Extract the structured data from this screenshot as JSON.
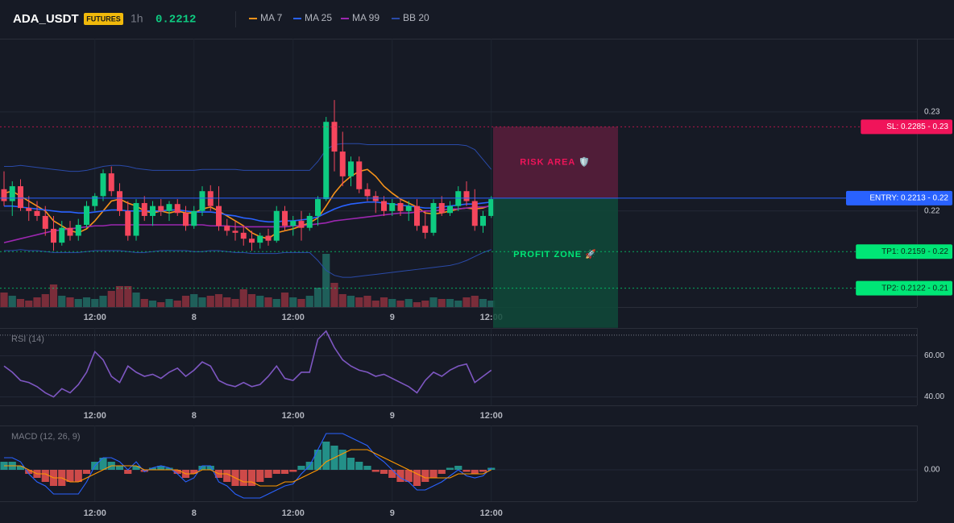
{
  "chart_data": [
    {
      "type": "candlestick",
      "title": "ADA_USDT",
      "badge": "FUTURES",
      "interval": "1h",
      "last_price": 0.2212,
      "last_price_color": "#0ecb81",
      "categories": [
        null,
        null,
        null,
        null,
        null,
        null,
        null,
        null,
        null,
        null,
        null,
        "12:00",
        null,
        null,
        null,
        null,
        null,
        null,
        null,
        null,
        null,
        null,
        null,
        "8",
        null,
        null,
        null,
        null,
        null,
        null,
        null,
        null,
        null,
        null,
        null,
        "12:00",
        null,
        null,
        null,
        null,
        null,
        null,
        null,
        null,
        null,
        null,
        null,
        "9",
        null,
        null,
        null,
        null,
        null,
        null,
        null,
        null,
        null,
        null,
        null,
        "12:00"
      ],
      "open": [
        0.2222,
        0.221,
        0.2225,
        0.2203,
        0.22,
        0.2195,
        0.2182,
        0.2168,
        0.2183,
        0.2175,
        0.2186,
        0.2205,
        0.2215,
        0.2238,
        0.222,
        0.22,
        0.2175,
        0.2208,
        0.2195,
        0.2205,
        0.22,
        0.2207,
        0.2198,
        0.2185,
        0.22,
        0.222,
        0.2205,
        0.2185,
        0.218,
        0.2178,
        0.2172,
        0.2168,
        0.2175,
        0.217,
        0.22,
        0.2185,
        0.219,
        0.2183,
        0.2195,
        0.2212,
        0.229,
        0.226,
        0.2235,
        0.225,
        0.2222,
        0.2215,
        0.221,
        0.22,
        0.2208,
        0.22,
        0.2205,
        0.2185,
        0.2178,
        0.2208,
        0.2198,
        0.2205,
        0.222,
        0.221,
        0.2185,
        0.2195
      ],
      "high": [
        0.224,
        0.223,
        0.2232,
        0.2215,
        0.221,
        0.2205,
        0.2195,
        0.219,
        0.219,
        0.2192,
        0.221,
        0.2218,
        0.2242,
        0.2245,
        0.2228,
        0.221,
        0.2212,
        0.2215,
        0.221,
        0.2212,
        0.221,
        0.2212,
        0.2205,
        0.2205,
        0.2225,
        0.2226,
        0.2225,
        0.2192,
        0.219,
        0.2185,
        0.218,
        0.2178,
        0.2182,
        0.2205,
        0.2205,
        0.2195,
        0.22,
        0.2198,
        0.2215,
        0.2295,
        0.2312,
        0.228,
        0.2255,
        0.2255,
        0.2228,
        0.222,
        0.2215,
        0.2212,
        0.2212,
        0.221,
        0.2212,
        0.22,
        0.2212,
        0.2215,
        0.221,
        0.2225,
        0.223,
        0.2222,
        0.22,
        0.2215
      ],
      "low": [
        0.2205,
        0.2195,
        0.22,
        0.219,
        0.219,
        0.2175,
        0.216,
        0.2165,
        0.217,
        0.217,
        0.2183,
        0.22,
        0.221,
        0.2215,
        0.2195,
        0.217,
        0.217,
        0.219,
        0.2185,
        0.2195,
        0.219,
        0.2195,
        0.218,
        0.2182,
        0.2195,
        0.22,
        0.218,
        0.2175,
        0.217,
        0.2165,
        0.216,
        0.2162,
        0.2165,
        0.2168,
        0.218,
        0.2175,
        0.217,
        0.218,
        0.2185,
        0.221,
        0.224,
        0.2225,
        0.2225,
        0.2218,
        0.221,
        0.2198,
        0.2195,
        0.2195,
        0.2195,
        0.219,
        0.218,
        0.2172,
        0.2175,
        0.2195,
        0.2195,
        0.22,
        0.2205,
        0.218,
        0.2178,
        0.2193
      ],
      "close": [
        0.221,
        0.2225,
        0.2203,
        0.22,
        0.2195,
        0.2182,
        0.2168,
        0.2183,
        0.2175,
        0.2186,
        0.2205,
        0.2215,
        0.2238,
        0.222,
        0.22,
        0.2175,
        0.2208,
        0.2195,
        0.2205,
        0.22,
        0.2207,
        0.2198,
        0.2185,
        0.22,
        0.222,
        0.2205,
        0.2185,
        0.218,
        0.2178,
        0.2172,
        0.2168,
        0.2175,
        0.217,
        0.22,
        0.2185,
        0.219,
        0.2183,
        0.2195,
        0.2212,
        0.229,
        0.226,
        0.2235,
        0.225,
        0.2222,
        0.2215,
        0.221,
        0.22,
        0.2208,
        0.22,
        0.2205,
        0.2185,
        0.2178,
        0.2208,
        0.2198,
        0.2205,
        0.222,
        0.221,
        0.2185,
        0.2195,
        0.2212
      ],
      "up_color": "#0ecb81",
      "down_color": "#f6465d",
      "volume": [
        18,
        14,
        10,
        8,
        12,
        16,
        28,
        14,
        12,
        10,
        12,
        10,
        14,
        20,
        26,
        26,
        18,
        10,
        8,
        6,
        10,
        8,
        14,
        16,
        12,
        14,
        16,
        12,
        10,
        22,
        16,
        14,
        12,
        10,
        18,
        12,
        10,
        14,
        24,
        66,
        30,
        16,
        14,
        12,
        14,
        8,
        12,
        10,
        8,
        10,
        6,
        8,
        12,
        10,
        10,
        8,
        12,
        14,
        10,
        8
      ],
      "volume_colors": [
        "#1f5f5a",
        "#7a2d3a"
      ],
      "series": [
        {
          "name": "MA 7",
          "color": "#f7931a",
          "values": [
            0.2218,
            0.222,
            0.2215,
            0.221,
            0.2205,
            0.22,
            0.219,
            0.2185,
            0.218,
            0.2178,
            0.2182,
            0.219,
            0.22,
            0.221,
            0.2212,
            0.2208,
            0.2205,
            0.22,
            0.2198,
            0.22,
            0.2198,
            0.22,
            0.2198,
            0.2198,
            0.2202,
            0.2204,
            0.22,
            0.2195,
            0.219,
            0.2185,
            0.2178,
            0.2174,
            0.2172,
            0.2178,
            0.218,
            0.2182,
            0.2185,
            0.2188,
            0.2193,
            0.2205,
            0.2218,
            0.2228,
            0.2235,
            0.224,
            0.2242,
            0.2235,
            0.2225,
            0.2218,
            0.2212,
            0.2208,
            0.2204,
            0.2198,
            0.2197,
            0.2198,
            0.22,
            0.2202,
            0.2203,
            0.2202,
            0.2203,
            0.2206
          ]
        },
        {
          "name": "MA 25",
          "color": "#2962ff",
          "values": [
            0.2205,
            0.2205,
            0.2204,
            0.2203,
            0.2202,
            0.2201,
            0.22,
            0.2199,
            0.2199,
            0.2198,
            0.2198,
            0.2199,
            0.22,
            0.2201,
            0.2201,
            0.22,
            0.22,
            0.22,
            0.22,
            0.22,
            0.2201,
            0.2201,
            0.22,
            0.2199,
            0.2199,
            0.2199,
            0.2198,
            0.2196,
            0.2195,
            0.2193,
            0.2192,
            0.219,
            0.2189,
            0.2189,
            0.219,
            0.219,
            0.2191,
            0.2192,
            0.2194,
            0.2198,
            0.2202,
            0.2205,
            0.2207,
            0.2208,
            0.2209,
            0.2209,
            0.2208,
            0.2207,
            0.2206,
            0.2205,
            0.2204,
            0.2203,
            0.2203,
            0.2204,
            0.2205,
            0.2206,
            0.2207,
            0.2207,
            0.2208,
            0.2209
          ]
        },
        {
          "name": "MA 99",
          "color": "#9c27b0",
          "values": [
            0.2168,
            0.217,
            0.2172,
            0.2174,
            0.2176,
            0.2178,
            0.218,
            0.2181,
            0.2182,
            0.2183,
            0.2184,
            0.2185,
            0.2185,
            0.2186,
            0.2186,
            0.2186,
            0.2186,
            0.2186,
            0.2186,
            0.2186,
            0.2186,
            0.2186,
            0.2186,
            0.2186,
            0.2186,
            0.2185,
            0.2185,
            0.2185,
            0.2184,
            0.2184,
            0.2184,
            0.2184,
            0.2184,
            0.2184,
            0.2184,
            0.2185,
            0.2185,
            0.2186,
            0.2187,
            0.2188,
            0.219,
            0.2191,
            0.2192,
            0.2193,
            0.2194,
            0.2195,
            0.2196,
            0.2197,
            0.2198,
            0.2198,
            0.2199,
            0.22,
            0.22,
            0.2201,
            0.2202,
            0.2202,
            0.2203,
            0.2204,
            0.2204,
            0.2205
          ]
        }
      ],
      "bands": {
        "name": "BB 20",
        "color": "#2a4aa8",
        "upper": [
          0.2245,
          0.2245,
          0.2246,
          0.2245,
          0.2244,
          0.2243,
          0.2242,
          0.2241,
          0.224,
          0.224,
          0.2241,
          0.2243,
          0.2245,
          0.2246,
          0.2246,
          0.2245,
          0.2243,
          0.2242,
          0.2241,
          0.2241,
          0.2241,
          0.2241,
          0.2241,
          0.2241,
          0.2242,
          0.2242,
          0.2242,
          0.2242,
          0.2242,
          0.2241,
          0.2241,
          0.2241,
          0.2241,
          0.2241,
          0.2241,
          0.2241,
          0.2241,
          0.2241,
          0.225,
          0.2262,
          0.2267,
          0.2268,
          0.2268,
          0.2268,
          0.2267,
          0.2267,
          0.2267,
          0.2267,
          0.2267,
          0.2267,
          0.2267,
          0.2267,
          0.2267,
          0.2267,
          0.2267,
          0.2267,
          0.2266,
          0.2262,
          0.2252,
          0.2242
        ],
        "lower": [
          0.216,
          0.216,
          0.2161,
          0.216,
          0.216,
          0.2159,
          0.2158,
          0.2158,
          0.2158,
          0.2158,
          0.2159,
          0.216,
          0.216,
          0.216,
          0.216,
          0.2159,
          0.2158,
          0.2158,
          0.2159,
          0.216,
          0.216,
          0.216,
          0.216,
          0.2159,
          0.2159,
          0.216,
          0.216,
          0.2159,
          0.2158,
          0.2158,
          0.2157,
          0.2157,
          0.2157,
          0.2157,
          0.2158,
          0.2158,
          0.2158,
          0.2158,
          0.215,
          0.214,
          0.2135,
          0.2133,
          0.2133,
          0.2134,
          0.2135,
          0.2136,
          0.2137,
          0.2138,
          0.2139,
          0.214,
          0.2141,
          0.2142,
          0.2143,
          0.2144,
          0.2145,
          0.2147,
          0.215,
          0.2154,
          0.2158,
          0.2161
        ]
      },
      "levels": [
        {
          "value": 0.2285,
          "label": "SL: 0.2285 - 0.23",
          "color": "#f0145a",
          "text_color": "#ffffff",
          "dashed": true
        },
        {
          "value": 0.2213,
          "label": "ENTRY: 0.2213 - 0.22",
          "color": "#2962ff",
          "text_color": "#ffffff",
          "dashed": false
        },
        {
          "value": 0.2159,
          "label": "TP1: 0.2159 - 0.22",
          "color": "#00e676",
          "text_color": "#0b2a17",
          "dashed": true
        },
        {
          "value": 0.2122,
          "label": "TP2: 0.2122 - 0.21",
          "color": "#00e676",
          "text_color": "#0b2a17",
          "dashed": true
        }
      ],
      "zones": [
        {
          "label": "RISK AREA 🛡️",
          "from": 0.2285,
          "to": 0.2213,
          "color": "#5a1f3c",
          "text_color": "#f0145a"
        },
        {
          "label": "PROFIT ZONE 🚀",
          "from": 0.2213,
          "to": 0.2082,
          "color": "#0f4a3a",
          "text_color": "#00e676"
        }
      ],
      "ylim": [
        0.2103,
        0.2374
      ],
      "yticks": [
        0.22,
        0.23
      ],
      "grid": true
    },
    {
      "type": "line",
      "title": "RSI (14)",
      "color": "#7e57c2",
      "values": [
        55,
        52,
        48,
        47,
        45,
        42,
        40,
        44,
        42,
        46,
        52,
        62,
        58,
        50,
        47,
        55,
        52,
        50,
        51,
        49,
        52,
        54,
        50,
        53,
        57,
        55,
        48,
        46,
        45,
        47,
        45,
        46,
        50,
        55,
        49,
        48,
        52,
        52,
        68,
        72,
        64,
        58,
        55,
        53,
        52,
        50,
        51,
        49,
        47,
        45,
        42,
        48,
        52,
        50,
        53,
        55,
        56,
        47,
        50,
        53
      ],
      "hlines": [
        70
      ],
      "ylim": [
        35.9,
        73.5
      ],
      "yticks": [
        {
          "value": 60,
          "label": "60.00"
        },
        {
          "value": 40,
          "label": "40.00"
        }
      ]
    },
    {
      "type": "macd",
      "title": "MACD (12, 26, 9)",
      "macd": {
        "color": "#2962ff",
        "values": [
          0.0003,
          0.0003,
          0.0002,
          -0.0001,
          -0.0003,
          -0.0004,
          -0.0006,
          -0.0006,
          -0.0006,
          -0.0006,
          -0.0003,
          0.0001,
          0.0003,
          0.0003,
          0.0002,
          0.0,
          0.0002,
          -5e-05,
          5e-05,
          0.0001,
          5e-05,
          -0.0001,
          -0.0003,
          -0.0002,
          0.0001,
          0.0001,
          -0.0003,
          -0.0004,
          -0.0006,
          -0.0007,
          -0.0007,
          -0.0007,
          -0.0006,
          -0.0005,
          -0.0004,
          -0.00035,
          -0.0001,
          0.0001,
          0.0005,
          0.0009,
          0.0009,
          0.0009,
          0.0008,
          0.0007,
          0.0006,
          0.00035,
          0.0002,
          0.0,
          -0.0002,
          -0.0003,
          -0.0005,
          -0.0005,
          -0.0004,
          -0.0003,
          -0.00015,
          0.0,
          -0.00015,
          -0.0002,
          -0.00015,
          5e-05
        ]
      },
      "signal": {
        "color": "#ff9800",
        "values": [
          0.0001,
          0.0001,
          0.0001,
          0.0,
          -0.0001,
          -0.0001,
          -0.0002,
          -0.0002,
          -0.0003,
          -0.0003,
          -0.0002,
          -0.0001,
          0.0,
          0.0001,
          0.0001,
          0.0001,
          0.0001,
          0.0,
          0.0,
          0.0,
          0.0,
          0.0,
          -0.0001,
          -0.0001,
          0.0,
          0.0,
          -0.0001,
          -0.0001,
          -0.0002,
          -0.0003,
          -0.0003,
          -0.0004,
          -0.0004,
          -0.0004,
          -0.0003,
          -0.0003,
          -0.0002,
          -0.0001,
          0.0,
          0.0002,
          0.0003,
          0.0004,
          0.0005,
          0.0005,
          0.0005,
          0.0004,
          0.0003,
          0.0002,
          0.0001,
          0.0,
          -0.0001,
          -0.0002,
          -0.0002,
          -0.0002,
          -0.0002,
          -0.0001,
          -0.0001,
          -0.0001,
          -0.0001,
          0.0
        ]
      },
      "histogram": {
        "colors": [
          "#26a69a",
          "#ef5350"
        ],
        "values": [
          0.0002,
          0.0002,
          0.0001,
          -0.0001,
          -0.0002,
          -0.0003,
          -0.0004,
          -0.0004,
          -0.0003,
          -0.0003,
          -0.0001,
          0.0002,
          0.0003,
          0.0002,
          0.0001,
          -0.0001,
          0.0001,
          -5e-05,
          5e-05,
          0.0001,
          5e-05,
          -0.0001,
          -0.0002,
          -0.0001,
          0.0001,
          0.0001,
          -0.0002,
          -0.0003,
          -0.0004,
          -0.0004,
          -0.0004,
          -0.0003,
          -0.0002,
          -0.0001,
          -0.0001,
          -5e-05,
          0.0001,
          0.0002,
          0.0005,
          0.0007,
          0.0006,
          0.0005,
          0.0003,
          0.0002,
          0.0001,
          -5e-05,
          -0.0001,
          -0.0002,
          -0.0003,
          -0.0003,
          -0.0004,
          -0.0003,
          -0.0002,
          -0.0001,
          5e-05,
          0.0001,
          -5e-05,
          -0.0001,
          -5e-05,
          5e-05
        ]
      },
      "ylim": [
        -0.00078,
        0.0011
      ],
      "yticks": [
        {
          "value": 0,
          "label": "0.00"
        }
      ]
    }
  ]
}
